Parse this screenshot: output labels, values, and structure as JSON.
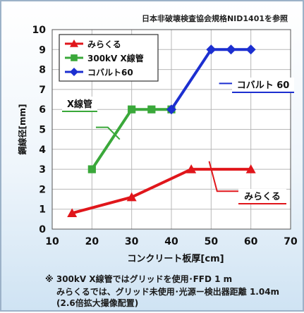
{
  "chart_data": {
    "type": "line",
    "title": "日本非破壊検査協会規格NID1401を参照",
    "xlabel": "コンクリート板厚[cm]",
    "ylabel": "鋼線径[mm]",
    "xlim": [
      10,
      70
    ],
    "ylim": [
      0,
      10
    ],
    "x_ticks": [
      "10",
      "20",
      "30",
      "40",
      "50",
      "60",
      "70"
    ],
    "y_ticks": [
      "0",
      "1",
      "2",
      "3",
      "4",
      "5",
      "6",
      "7",
      "8",
      "9",
      "10"
    ],
    "grid": true,
    "legend_position": "top-left",
    "series": [
      {
        "name": "みらくる",
        "color": "#e0161b",
        "marker": "triangle",
        "x": [
          15,
          30,
          45,
          60
        ],
        "y": [
          0.8,
          1.6,
          3.0,
          3.0
        ]
      },
      {
        "name": "300kV X線管",
        "color": "#3aa83a",
        "marker": "square",
        "x": [
          20,
          30,
          35,
          40
        ],
        "y": [
          3.0,
          6.0,
          6.0,
          6.0
        ]
      },
      {
        "name": "コバルト60",
        "color": "#1c2fd0",
        "marker": "diamond",
        "x": [
          40,
          50,
          55,
          60
        ],
        "y": [
          6.0,
          9.0,
          9.0,
          9.0
        ]
      }
    ],
    "annotations": [
      {
        "text": "X線管",
        "series": 1
      },
      {
        "text": "コバルト 60",
        "series": 2
      },
      {
        "text": "みらくる",
        "series": 0
      }
    ]
  },
  "notes": [
    "※ 300kV X線管ではグリッドを使用･FFD 1 m",
    "みらくるでは、グリッド未使用･光源ー検出器距離 1.04m",
    "(2.6倍拡大撮像配置)"
  ]
}
